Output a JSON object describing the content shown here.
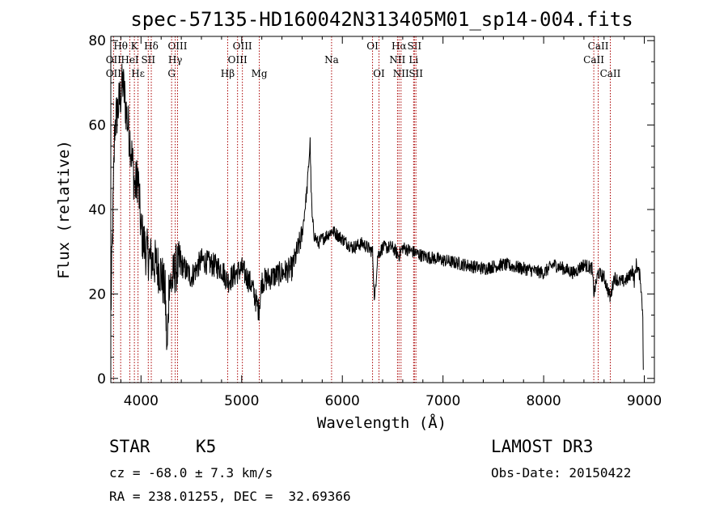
{
  "header": {
    "title": "spec-57135-HD160042N313405M01_sp14-004.fits"
  },
  "chart_data": {
    "type": "line",
    "xlabel": "Wavelength (Å)",
    "ylabel": "Flux (relative)",
    "xlim": [
      3700,
      9100
    ],
    "ylim": [
      -1,
      81
    ],
    "xticks": [
      4000,
      5000,
      6000,
      7000,
      8000,
      9000
    ],
    "yticks": [
      0,
      20,
      40,
      60,
      80
    ],
    "grid": false,
    "line_color": "#000000",
    "marker_color": "#aa0000",
    "series": [
      {
        "x": [
          3700,
          3740,
          3780,
          3820,
          3860,
          3900,
          3940,
          3970,
          4000,
          4050,
          4100,
          4150,
          4200,
          4240,
          4260,
          4280,
          4300,
          4340,
          4400,
          4500,
          4600,
          4700,
          4800,
          4861,
          4900,
          5000,
          5100,
          5170,
          5200,
          5300,
          5400,
          5500,
          5600,
          5650,
          5680,
          5690,
          5700,
          5720,
          5760,
          5800,
          5900,
          6000,
          6100,
          6200,
          6300,
          6320,
          6350,
          6400,
          6500,
          6560,
          6600,
          6700,
          6800,
          7000,
          7200,
          7400,
          7600,
          7800,
          8000,
          8100,
          8200,
          8300,
          8400,
          8480,
          8500,
          8540,
          8600,
          8662,
          8700,
          8750,
          8800,
          8850,
          8880,
          8900,
          8920,
          8960,
          8985,
          8990
        ],
        "y": [
          15,
          60,
          65,
          70,
          62,
          55,
          45,
          48,
          35,
          30,
          28,
          27,
          25,
          20,
          5,
          24,
          22,
          26,
          27,
          24,
          28,
          27,
          26,
          23,
          24,
          26,
          22,
          16,
          23,
          24,
          25,
          26,
          34,
          45,
          56,
          45,
          38,
          34,
          32,
          33,
          35,
          33,
          31,
          32,
          30,
          18,
          29,
          31,
          31,
          29,
          31,
          30,
          29,
          28,
          27,
          26,
          27,
          26,
          25,
          27,
          26,
          25,
          27,
          26,
          20,
          25,
          24,
          19,
          24,
          23,
          23,
          24,
          26,
          23,
          27,
          24,
          15,
          2
        ]
      }
    ],
    "spectral_lines": [
      {
        "label": "Hθ",
        "wl": 3798,
        "row": 0
      },
      {
        "label": "K",
        "wl": 3934,
        "row": 0
      },
      {
        "label": "Hδ",
        "wl": 4102,
        "row": 0
      },
      {
        "label": "OIII",
        "wl": 4363,
        "row": 0
      },
      {
        "label": "OIII",
        "wl": 5007,
        "row": 0
      },
      {
        "label": "OI",
        "wl": 6300,
        "row": 0
      },
      {
        "label": "Hα",
        "wl": 6563,
        "row": 0
      },
      {
        "label": "SII",
        "wl": 6716,
        "row": 0
      },
      {
        "label": "CaII",
        "wl": 8542,
        "row": 0
      },
      {
        "label": "OII",
        "wl": 3727,
        "row": 1
      },
      {
        "label": "HeI",
        "wl": 3889,
        "row": 1
      },
      {
        "label": "SII",
        "wl": 4072,
        "row": 1
      },
      {
        "label": "Hγ",
        "wl": 4340,
        "row": 1
      },
      {
        "label": "OIII",
        "wl": 4959,
        "row": 1
      },
      {
        "label": "Na",
        "wl": 5893,
        "row": 1
      },
      {
        "label": "NII",
        "wl": 6548,
        "row": 1
      },
      {
        "label": "Li",
        "wl": 6708,
        "row": 1
      },
      {
        "label": "CaII",
        "wl": 8498,
        "row": 1
      },
      {
        "label": "OII",
        "wl": 3727,
        "row": 2
      },
      {
        "label": "Hε",
        "wl": 3970,
        "row": 2
      },
      {
        "label": "G",
        "wl": 4304,
        "row": 2
      },
      {
        "label": "Hβ",
        "wl": 4861,
        "row": 2
      },
      {
        "label": "Mg",
        "wl": 5175,
        "row": 2
      },
      {
        "label": "OI",
        "wl": 6364,
        "row": 2
      },
      {
        "label": "NII",
        "wl": 6583,
        "row": 2
      },
      {
        "label": "SII",
        "wl": 6731,
        "row": 2
      },
      {
        "label": "CaII",
        "wl": 8662,
        "row": 2
      }
    ]
  },
  "info": {
    "class": "STAR",
    "subclass": "K5",
    "survey": "LAMOST DR3",
    "cz": "cz = -68.0 ± 7.3 km/s",
    "obsdate": "Obs-Date: 20150422",
    "radec": "RA = 238.01255, DEC =  32.69366"
  }
}
